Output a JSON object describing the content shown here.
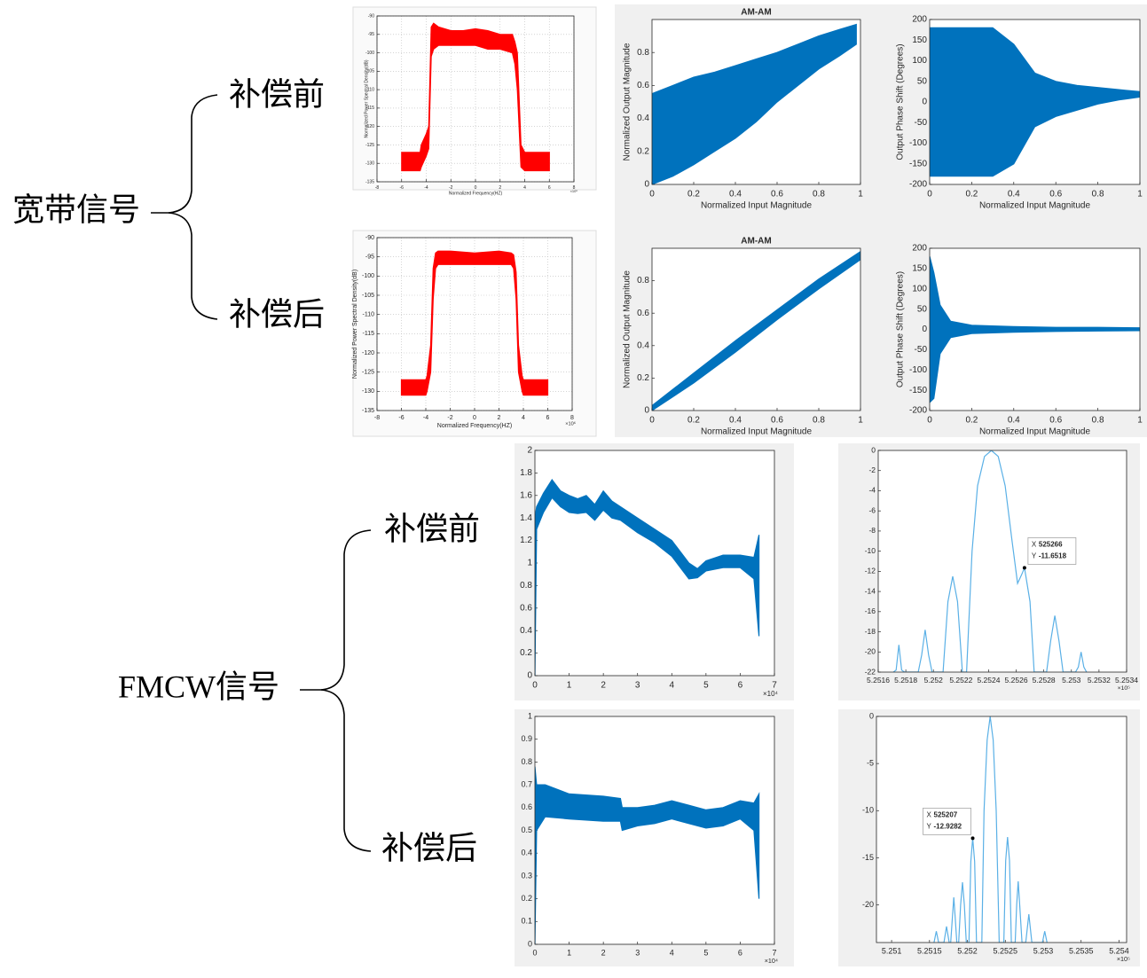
{
  "labels": {
    "wideband": "宽带信号",
    "wideband_before": "补偿前",
    "wideband_after": "补偿后",
    "fmcw": "FMCW信号",
    "fmcw_before": "补偿前",
    "fmcw_after": "补偿后"
  },
  "chart_data": [
    {
      "type": "area",
      "color": "#ff0000",
      "grid": true,
      "xlabel": "Normalized Frequency(HZ)",
      "ylabel": "Normalized Power Spectral Density(dB)",
      "x_exponent": "×10⁶",
      "xlim": [
        -8,
        8
      ],
      "xticks": [
        -8,
        -6,
        -4,
        -2,
        0,
        2,
        4,
        6,
        8
      ],
      "ylim": [
        -135,
        -90
      ],
      "yticks": [
        -135,
        -130,
        -125,
        -120,
        -115,
        -110,
        -105,
        -100,
        -95,
        -90
      ],
      "x": [
        -6,
        -4.5,
        -4.4,
        -4,
        -3.8,
        -3.6,
        -3.4,
        -3,
        -2,
        -1,
        0,
        1,
        2,
        3,
        3.2,
        3.4,
        3.7,
        4,
        6
      ],
      "upper": [
        -127,
        -127,
        -125,
        -122,
        -120,
        -93,
        -92,
        -93,
        -94,
        -94,
        -93.5,
        -94,
        -95,
        -95,
        -97,
        -100,
        -125,
        -127,
        -127
      ],
      "lower": [
        -132,
        -132,
        -131,
        -128,
        -126,
        -101,
        -99,
        -98,
        -98,
        -98,
        -98,
        -99,
        -99,
        -100,
        -103,
        -110,
        -131,
        -132,
        -132
      ]
    },
    {
      "type": "area",
      "color": "#0072bd",
      "title": "AM-AM",
      "xlabel": "Normalized Input Magnitude",
      "ylabel": "Normalized Output Magnitude",
      "xlim": [
        0,
        1
      ],
      "xticks": [
        0,
        0.2,
        0.4,
        0.6,
        0.8,
        1
      ],
      "ylim": [
        0,
        1
      ],
      "yticks": [
        0,
        0.2,
        0.4,
        0.6,
        0.8
      ],
      "x": [
        0,
        0.1,
        0.2,
        0.3,
        0.4,
        0.5,
        0.6,
        0.7,
        0.8,
        0.9,
        0.98
      ],
      "upper": [
        0.55,
        0.6,
        0.65,
        0.68,
        0.72,
        0.76,
        0.8,
        0.85,
        0.9,
        0.94,
        0.97
      ],
      "lower": [
        0,
        0.05,
        0.12,
        0.2,
        0.28,
        0.38,
        0.5,
        0.6,
        0.7,
        0.78,
        0.85
      ]
    },
    {
      "type": "area",
      "color": "#0072bd",
      "xlabel": "Normalized Input Magnitude",
      "ylabel": "Output Phase Shift (Degrees)",
      "xlim": [
        0,
        1
      ],
      "xticks": [
        0,
        0.2,
        0.4,
        0.6,
        0.8,
        1
      ],
      "ylim": [
        -200,
        200
      ],
      "yticks": [
        -200,
        -150,
        -100,
        -50,
        0,
        50,
        100,
        150,
        200
      ],
      "x": [
        0,
        0.05,
        0.1,
        0.2,
        0.3,
        0.4,
        0.5,
        0.6,
        0.7,
        0.8,
        0.9,
        1
      ],
      "upper": [
        180,
        180,
        180,
        180,
        180,
        140,
        70,
        50,
        40,
        35,
        30,
        25
      ],
      "lower": [
        -180,
        -180,
        -180,
        -180,
        -180,
        -150,
        -60,
        -35,
        -20,
        -5,
        5,
        12
      ]
    },
    {
      "type": "area",
      "color": "#ff0000",
      "grid": true,
      "xlabel": "Normalized Frequency(HZ)",
      "ylabel": "Normalized Power Spectral Density(dB)",
      "x_exponent": "×10⁶",
      "xlim": [
        -8,
        8
      ],
      "xticks": [
        -8,
        -6,
        -4,
        -2,
        0,
        2,
        4,
        6,
        8
      ],
      "ylim": [
        -135,
        -90
      ],
      "yticks": [
        -135,
        -130,
        -125,
        -120,
        -115,
        -110,
        -105,
        -100,
        -95,
        -90
      ],
      "x": [
        -6,
        -4,
        -3.9,
        -3.6,
        -3.4,
        -3.2,
        -3,
        -2,
        0,
        2,
        3,
        3.2,
        3.4,
        3.6,
        3.9,
        4,
        6
      ],
      "upper": [
        -127,
        -127,
        -126,
        -118,
        -98,
        -94,
        -93.5,
        -93.5,
        -94,
        -93.5,
        -94,
        -94.5,
        -99,
        -118,
        -126,
        -127,
        -127
      ],
      "lower": [
        -131,
        -131,
        -130,
        -125,
        -106,
        -98,
        -97,
        -97,
        -97,
        -97,
        -97,
        -98,
        -106,
        -125,
        -130,
        -131,
        -131
      ]
    },
    {
      "type": "area",
      "color": "#0072bd",
      "title": "AM-AM",
      "xlabel": "Normalized Input Magnitude",
      "ylabel": "Normalized Output Magnitude",
      "xlim": [
        0,
        1
      ],
      "xticks": [
        0,
        0.2,
        0.4,
        0.6,
        0.8,
        1
      ],
      "ylim": [
        0,
        1
      ],
      "yticks": [
        0,
        0.2,
        0.4,
        0.6,
        0.8
      ],
      "x": [
        0,
        0.2,
        0.4,
        0.6,
        0.8,
        1
      ],
      "upper": [
        0.03,
        0.23,
        0.43,
        0.62,
        0.81,
        0.98
      ],
      "lower": [
        0,
        0.17,
        0.36,
        0.56,
        0.75,
        0.93
      ]
    },
    {
      "type": "area",
      "color": "#0072bd",
      "xlabel": "Normalized Input Magnitude",
      "ylabel": "Output Phase Shift (Degrees)",
      "xlim": [
        0,
        1
      ],
      "xticks": [
        0,
        0.2,
        0.4,
        0.6,
        0.8,
        1
      ],
      "ylim": [
        -200,
        200
      ],
      "yticks": [
        -200,
        -150,
        -100,
        -50,
        0,
        50,
        100,
        150,
        200
      ],
      "x": [
        0,
        0.02,
        0.05,
        0.1,
        0.2,
        0.4,
        0.6,
        0.8,
        1
      ],
      "upper": [
        180,
        140,
        60,
        20,
        10,
        7,
        5,
        5,
        4
      ],
      "lower": [
        -180,
        -170,
        -60,
        -20,
        -10,
        -7,
        -5,
        -4,
        -3
      ]
    },
    {
      "type": "area",
      "color": "#0072bd",
      "x_exponent": "×10⁴",
      "xlim": [
        0,
        7
      ],
      "xticks": [
        0,
        1,
        2,
        3,
        4,
        5,
        6,
        7
      ],
      "ylim": [
        0,
        2
      ],
      "yticks": [
        0,
        0.2,
        0.4,
        0.6,
        0.8,
        1,
        1.2,
        1.4,
        1.6,
        1.8,
        2
      ],
      "x": [
        0,
        0.05,
        0.25,
        0.5,
        0.75,
        1,
        1.25,
        1.5,
        1.75,
        2,
        2.25,
        2.5,
        3,
        3.5,
        4,
        4.5,
        4.75,
        5,
        5.5,
        6,
        6.4,
        6.55
      ],
      "upper": [
        1.4,
        1.5,
        1.62,
        1.74,
        1.64,
        1.6,
        1.57,
        1.6,
        1.52,
        1.64,
        1.55,
        1.5,
        1.4,
        1.3,
        1.2,
        1.0,
        0.95,
        1.02,
        1.07,
        1.07,
        1.05,
        1.25
      ],
      "lower": [
        0,
        1.3,
        1.45,
        1.58,
        1.5,
        1.45,
        1.44,
        1.45,
        1.38,
        1.47,
        1.4,
        1.38,
        1.27,
        1.18,
        1.06,
        0.86,
        0.87,
        0.93,
        0.96,
        0.96,
        0.86,
        0.35
      ]
    },
    {
      "type": "line",
      "color": "#5ab0e6",
      "x_exponent": "×10⁵",
      "xlim": [
        5.2516,
        5.2534
      ],
      "xticks": [
        5.2516,
        5.2518,
        5.252,
        5.2522,
        5.2524,
        5.2526,
        5.2528,
        5.253,
        5.2532,
        5.2534
      ],
      "ylim": [
        -22,
        0
      ],
      "yticks": [
        -22,
        -20,
        -18,
        -16,
        -14,
        -12,
        -10,
        -8,
        -6,
        -4,
        -2,
        0
      ],
      "x": [
        5.25171,
        5.25173,
        5.25175,
        5.25177,
        5.25179,
        5.25189,
        5.251915,
        5.25194,
        5.251965,
        5.25199,
        5.25207,
        5.252105,
        5.25214,
        5.252175,
        5.25221,
        5.25224,
        5.25228,
        5.25232,
        5.25237,
        5.25242,
        5.25247,
        5.25252,
        5.25257,
        5.25261,
        5.25264,
        5.25266,
        5.2527,
        5.25273,
        5.25282,
        5.25285,
        5.25288,
        5.25291,
        5.25294,
        5.25303,
        5.25305,
        5.25307,
        5.25309,
        5.25311
      ],
      "values": [
        -22,
        -21.8,
        -19.3,
        -21.8,
        -22,
        -22,
        -20.3,
        -17.8,
        -20.3,
        -22,
        -22,
        -15,
        -12.5,
        -15,
        -22,
        -22,
        -10,
        -3.5,
        -0.6,
        0,
        -0.6,
        -3.5,
        -9,
        -13.2,
        -12.3,
        -11.65,
        -15,
        -22,
        -22,
        -18.9,
        -16.4,
        -18.9,
        -22,
        -22,
        -21.5,
        -20,
        -21.5,
        -22
      ],
      "datatip": {
        "x_name": "X",
        "y_name": "Y",
        "x": {
          "value": 5.25266,
          "label": "525266"
        },
        "y": -11.6518
      }
    },
    {
      "type": "area",
      "color": "#0072bd",
      "x_exponent": "×10⁴",
      "xlim": [
        0,
        7
      ],
      "xticks": [
        0,
        1,
        2,
        3,
        4,
        5,
        6,
        7
      ],
      "ylim": [
        0,
        1
      ],
      "yticks": [
        0,
        0.1,
        0.2,
        0.3,
        0.4,
        0.5,
        0.6,
        0.7,
        0.8,
        0.9,
        1
      ],
      "x": [
        0,
        0.05,
        0.3,
        1,
        2,
        2.5,
        2.55,
        3,
        3.5,
        4,
        4.5,
        5,
        5.5,
        6,
        6.4,
        6.55
      ],
      "upper": [
        0.78,
        0.7,
        0.7,
        0.66,
        0.65,
        0.64,
        0.6,
        0.6,
        0.61,
        0.63,
        0.61,
        0.59,
        0.6,
        0.63,
        0.62,
        0.66
      ],
      "lower": [
        0,
        0.5,
        0.56,
        0.55,
        0.54,
        0.54,
        0.5,
        0.52,
        0.53,
        0.55,
        0.53,
        0.51,
        0.52,
        0.55,
        0.5,
        0.2
      ]
    },
    {
      "type": "line",
      "color": "#5ab0e6",
      "x_exponent": "×10⁵",
      "xlim": [
        5.2508,
        5.2541
      ],
      "xticks": [
        5.251,
        5.2515,
        5.252,
        5.2525,
        5.253,
        5.2535,
        5.254
      ],
      "ylim": [
        -24,
        0
      ],
      "yticks": [
        -20,
        -15,
        -10,
        -5,
        0
      ],
      "x": [
        5.25156,
        5.25159,
        5.25162,
        5.25169,
        5.251724,
        5.25176,
        5.25178,
        5.2518,
        5.25182,
        5.25184,
        5.25186,
        5.251885,
        5.25191,
        5.251935,
        5.25196,
        5.251985,
        5.25202,
        5.252045,
        5.25207,
        5.252095,
        5.25212,
        5.25219,
        5.25222,
        5.25226,
        5.2523,
        5.25234,
        5.25238,
        5.25242,
        5.25248,
        5.252505,
        5.25253,
        5.252555,
        5.25258,
        5.25263,
        5.25265,
        5.25267,
        5.25269,
        5.25272,
        5.25277,
        5.25281,
        5.25285,
        5.25299,
        5.25302,
        5.25305
      ],
      "values": [
        -24,
        -22.8,
        -24,
        -24,
        -22.3,
        -24,
        -24,
        -21.5,
        -19.2,
        -21.5,
        -24,
        -24,
        -20,
        -17.6,
        -20,
        -24,
        -24,
        -15.4,
        -12.9,
        -15.4,
        -24,
        -24,
        -10,
        -2.5,
        0,
        -2.5,
        -10,
        -24,
        -24,
        -15.3,
        -12.8,
        -15.3,
        -24,
        -24,
        -20,
        -17.5,
        -20,
        -24,
        -24,
        -21,
        -24,
        -24,
        -22.8,
        -24
      ],
      "datatip": {
        "x_name": "X",
        "y_name": "Y",
        "x": {
          "value": 5.25207,
          "label": "525207"
        },
        "y": {
          "value": -12.9282,
          "label": "-12.9282"
        }
      }
    }
  ]
}
